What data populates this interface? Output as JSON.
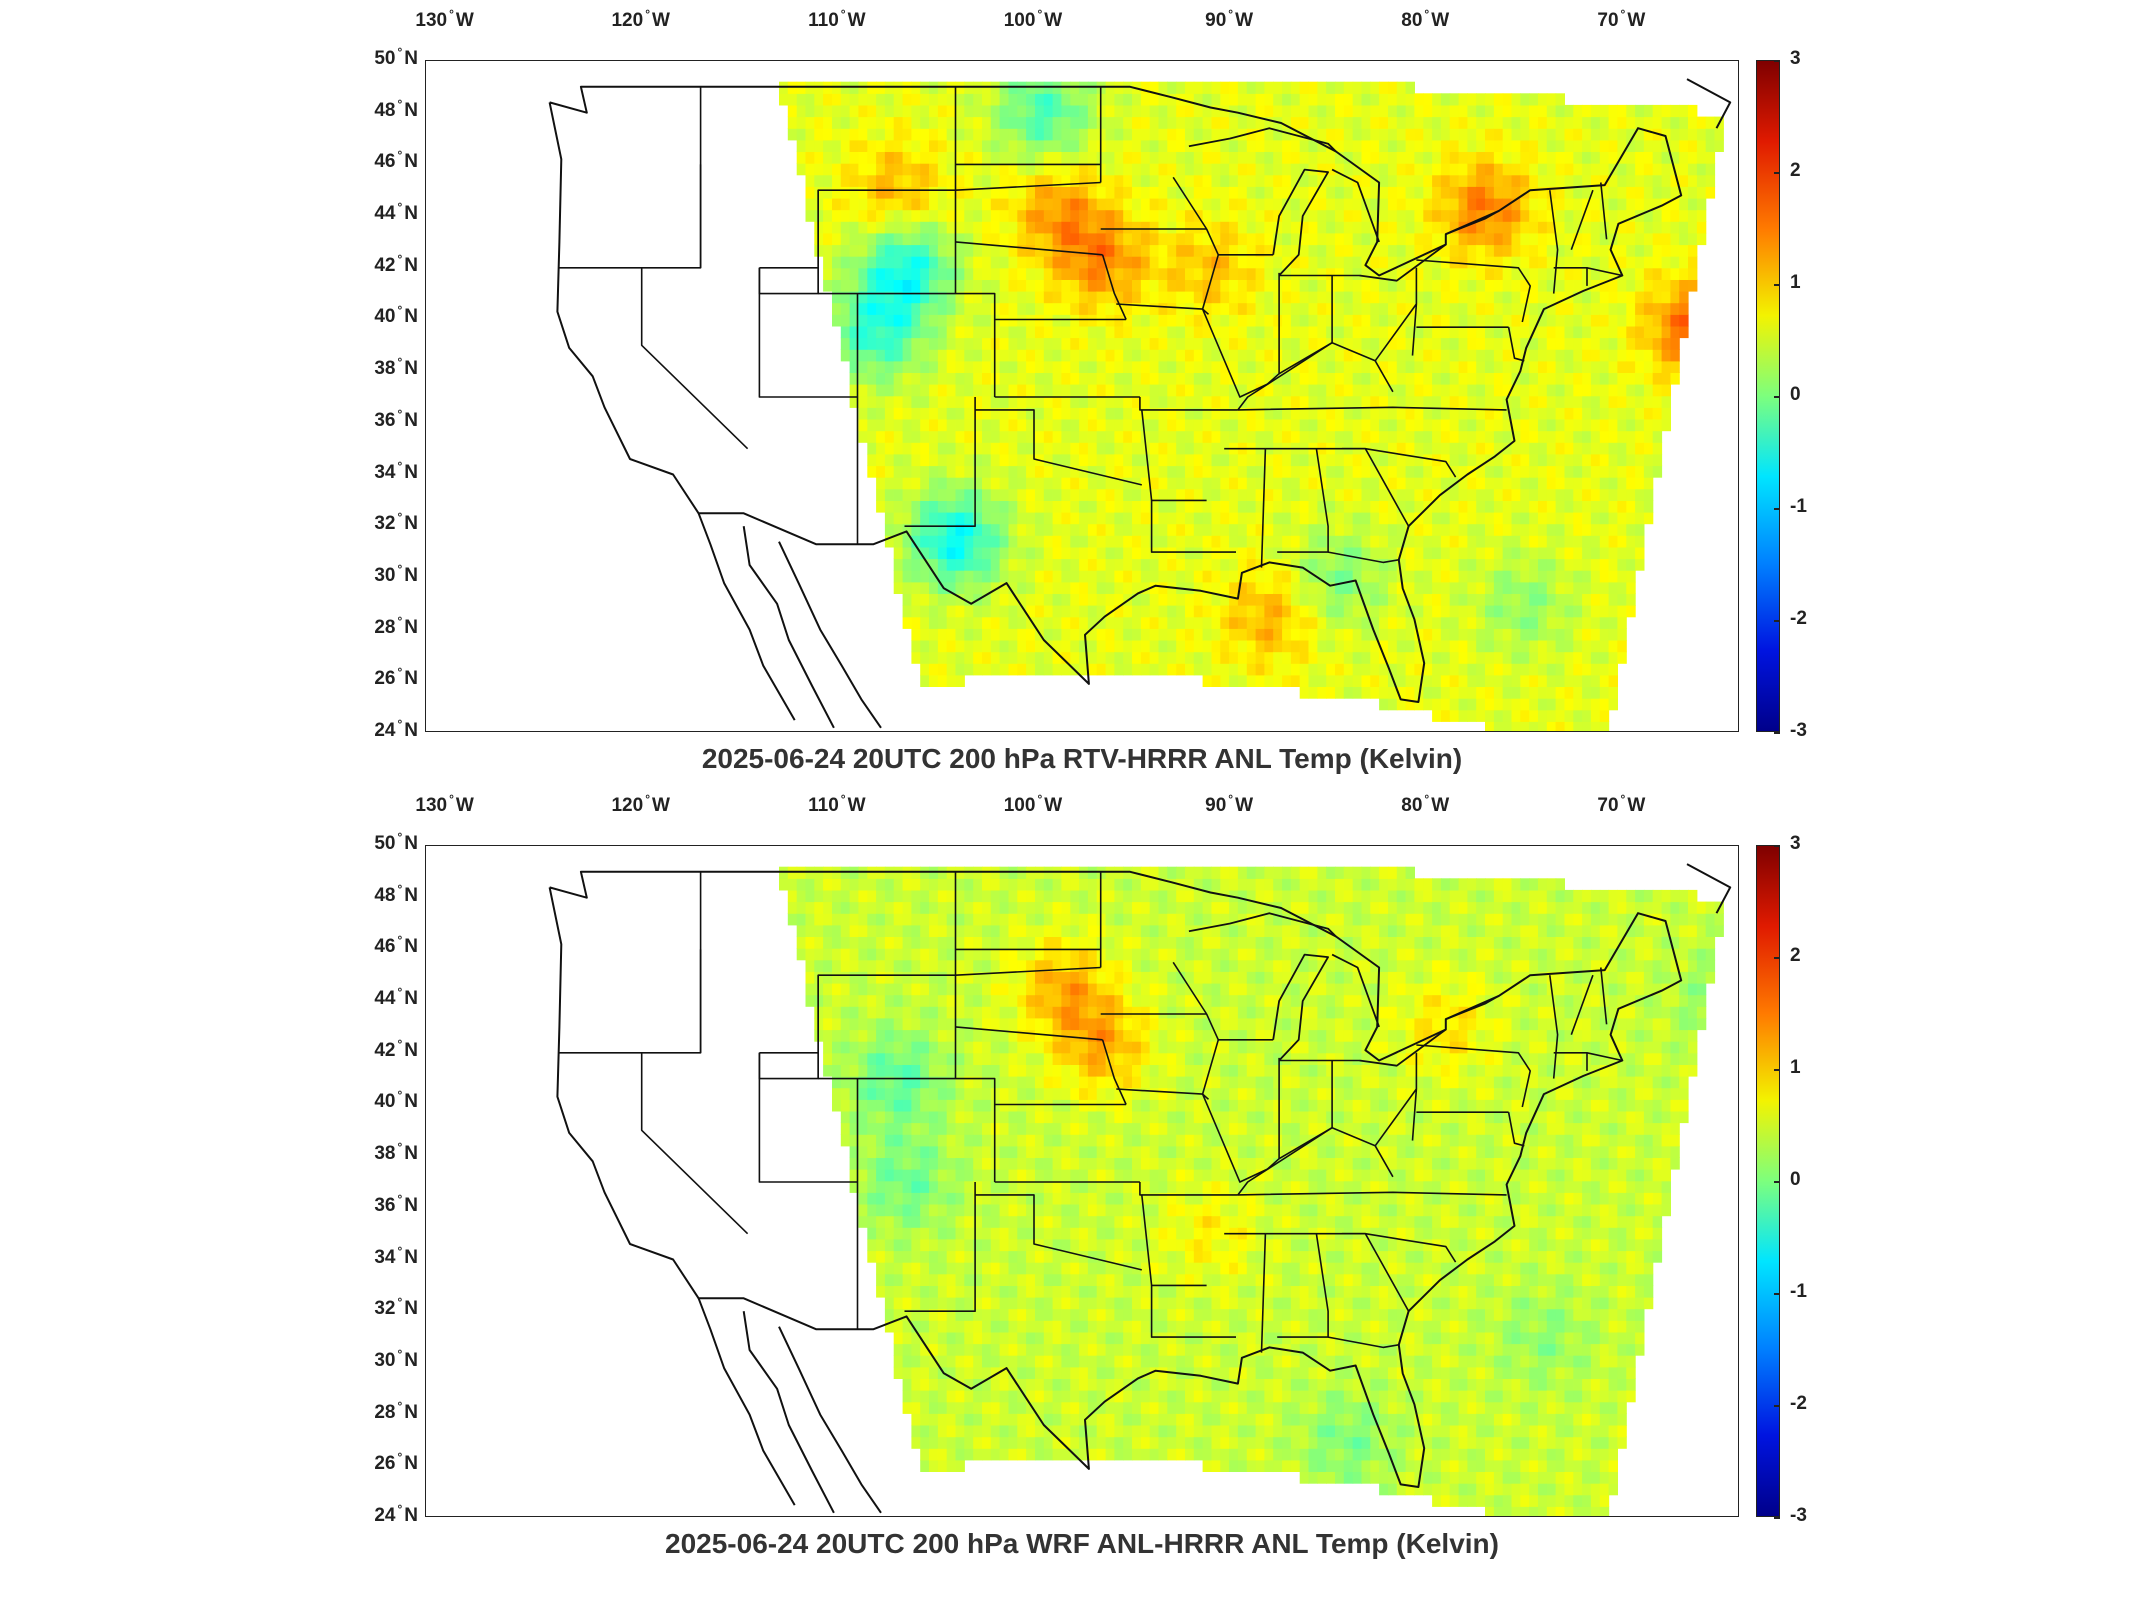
{
  "figure": {
    "longitude_labels": [
      {
        "deg": "130",
        "hemi": "W"
      },
      {
        "deg": "120",
        "hemi": "W"
      },
      {
        "deg": "110",
        "hemi": "W"
      },
      {
        "deg": "100",
        "hemi": "W"
      },
      {
        "deg": "90",
        "hemi": "W"
      },
      {
        "deg": "80",
        "hemi": "W"
      },
      {
        "deg": "70",
        "hemi": "W"
      }
    ],
    "latitude_labels": [
      {
        "deg": "50",
        "hemi": "N"
      },
      {
        "deg": "48",
        "hemi": "N"
      },
      {
        "deg": "46",
        "hemi": "N"
      },
      {
        "deg": "44",
        "hemi": "N"
      },
      {
        "deg": "42",
        "hemi": "N"
      },
      {
        "deg": "40",
        "hemi": "N"
      },
      {
        "deg": "38",
        "hemi": "N"
      },
      {
        "deg": "36",
        "hemi": "N"
      },
      {
        "deg": "34",
        "hemi": "N"
      },
      {
        "deg": "32",
        "hemi": "N"
      },
      {
        "deg": "30",
        "hemi": "N"
      },
      {
        "deg": "28",
        "hemi": "N"
      },
      {
        "deg": "26",
        "hemi": "N"
      },
      {
        "deg": "24",
        "hemi": "N"
      }
    ],
    "lon_range": [
      -131,
      -64
    ],
    "lat_range": [
      24,
      50
    ],
    "colorbar": {
      "ticks": [
        "3",
        "2",
        "1",
        "0",
        "-1",
        "-2",
        "-3"
      ],
      "range": [
        -3,
        3
      ],
      "colormap": "jet"
    }
  },
  "panels": [
    {
      "title": "2025-06-24 20UTC 200 hPa RTV-HRRR ANL Temp (Kelvin)",
      "field_mean_kelvin": 0.6,
      "warm_spots": [
        {
          "lon": -96.5,
          "lat": 42.3,
          "val": 1.4
        },
        {
          "lon": -98.8,
          "lat": 44.2,
          "val": 1.3
        },
        {
          "lon": -107.0,
          "lat": 45.0,
          "val": 1.2
        },
        {
          "lon": -77.0,
          "lat": 44.3,
          "val": 1.5
        },
        {
          "lon": -66.5,
          "lat": 39.7,
          "val": 1.6
        },
        {
          "lon": -88.0,
          "lat": 28.5,
          "val": 1.2
        },
        {
          "lon": -91.0,
          "lat": 42.0,
          "val": 1.1
        }
      ],
      "cool_spots": [
        {
          "lon": -106.5,
          "lat": 42.0,
          "val": -0.6
        },
        {
          "lon": -108.0,
          "lat": 39.5,
          "val": -0.4
        },
        {
          "lon": -104.0,
          "lat": 31.5,
          "val": -0.7
        },
        {
          "lon": -99.5,
          "lat": 48.0,
          "val": -0.3
        },
        {
          "lon": -84.5,
          "lat": 30.0,
          "val": 0.0
        },
        {
          "lon": -75.0,
          "lat": 29.0,
          "val": 0.1
        }
      ]
    },
    {
      "title": "2025-06-24 20UTC 200 hPa WRF ANL-HRRR ANL Temp (Kelvin)",
      "field_mean_kelvin": 0.45,
      "warm_spots": [
        {
          "lon": -96.5,
          "lat": 42.3,
          "val": 1.2
        },
        {
          "lon": -98.5,
          "lat": 44.5,
          "val": 1.2
        },
        {
          "lon": -79.0,
          "lat": 43.0,
          "val": 0.9
        },
        {
          "lon": -91.0,
          "lat": 35.0,
          "val": 0.8
        }
      ],
      "cool_spots": [
        {
          "lon": -107.0,
          "lat": 41.0,
          "val": -0.2
        },
        {
          "lon": -106.5,
          "lat": 37.0,
          "val": -0.1
        },
        {
          "lon": -84.0,
          "lat": 27.0,
          "val": 0.0
        },
        {
          "lon": -74.0,
          "lat": 31.0,
          "val": 0.1
        },
        {
          "lon": -65.0,
          "lat": 44.0,
          "val": 0.1
        }
      ]
    }
  ]
}
